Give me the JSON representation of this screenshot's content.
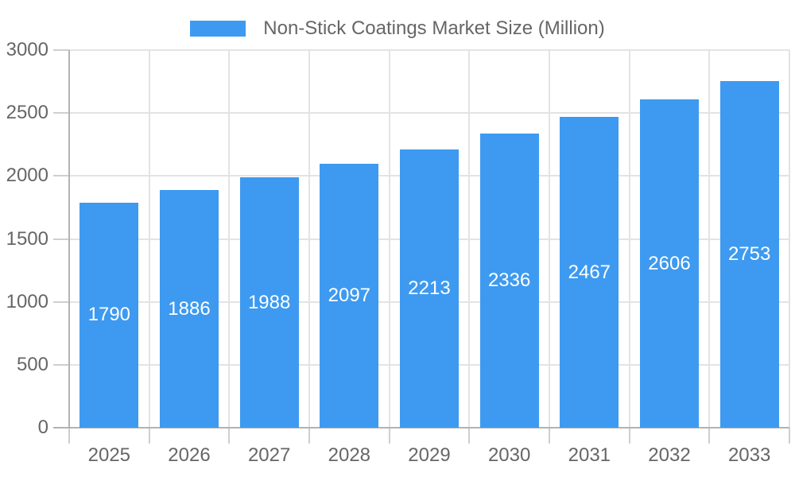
{
  "chart_data": {
    "type": "bar",
    "title": "",
    "legend": {
      "label": "Non-Stick Coatings Market Size (Million)",
      "position": "top"
    },
    "categories": [
      "2025",
      "2026",
      "2027",
      "2028",
      "2029",
      "2030",
      "2031",
      "2032",
      "2033"
    ],
    "series": [
      {
        "name": "Non-Stick Coatings Market Size (Million)",
        "values": [
          1790,
          1886,
          1988,
          2097,
          2213,
          2336,
          2467,
          2606,
          2753
        ]
      }
    ],
    "ylim": [
      0,
      3000
    ],
    "yticks": [
      0,
      500,
      1000,
      1500,
      2000,
      2500,
      3000
    ],
    "xlabel": "",
    "ylabel": "",
    "grid": true,
    "value_labels": "inside-center",
    "colors": {
      "bar": "#3d9af0",
      "grid": "#e3e3e3",
      "axis_line": "#b3b3b3",
      "tick_mark": "#cfcfcf",
      "axis_text": "#666666",
      "value_text": "#ffffff",
      "background": "#ffffff"
    }
  }
}
